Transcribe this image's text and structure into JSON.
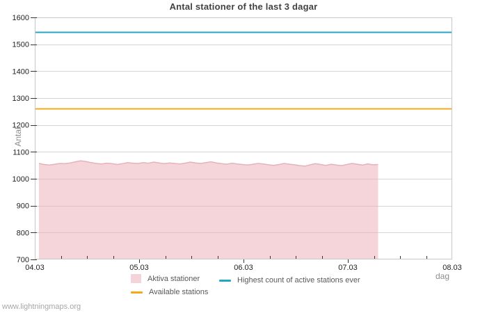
{
  "page": {
    "watermark": "www.lightningmaps.org"
  },
  "chart_data": {
    "type": "area",
    "title": "Antal stationer of the last 3 dagar",
    "xlabel": "dag",
    "ylabel": "Antal",
    "ylim": [
      700,
      1600
    ],
    "yticks": [
      700,
      800,
      900,
      1000,
      1100,
      1200,
      1300,
      1400,
      1500,
      1600
    ],
    "xticks": [
      "04.03",
      "05.03",
      "06.03",
      "07.03",
      "08.03"
    ],
    "xtick_days": [
      0,
      1,
      2,
      3,
      4
    ],
    "x_days_range": [
      0,
      4
    ],
    "grid": "horizontal",
    "legend_position": "bottom",
    "series": [
      {
        "name": "Aktiva stationer",
        "type": "area",
        "fill_color": "#ecacb6",
        "fill_opacity": 0.5,
        "edge_color": "#e5b2bb",
        "x_days_start": 0.04,
        "x_days_step": 0.05,
        "values": [
          1057,
          1053,
          1051,
          1054,
          1057,
          1056,
          1059,
          1063,
          1067,
          1064,
          1060,
          1057,
          1055,
          1058,
          1056,
          1053,
          1056,
          1060,
          1058,
          1057,
          1060,
          1058,
          1062,
          1059,
          1056,
          1059,
          1057,
          1055,
          1058,
          1062,
          1059,
          1057,
          1060,
          1063,
          1059,
          1056,
          1054,
          1058,
          1055,
          1053,
          1051,
          1054,
          1057,
          1055,
          1052,
          1050,
          1053,
          1057,
          1054,
          1052,
          1049,
          1047,
          1052,
          1056,
          1053,
          1050,
          1054,
          1051,
          1049,
          1053,
          1057,
          1054,
          1051,
          1055,
          1052,
          1053
        ]
      },
      {
        "name": "Available stations",
        "type": "line",
        "color": "#f3a81e",
        "x_days": [
          0,
          4
        ],
        "values": [
          1261,
          1261
        ]
      },
      {
        "name": "Highest count of active stations ever",
        "type": "line",
        "color": "#24a5c6",
        "x_days": [
          0,
          4
        ],
        "values": [
          1545,
          1545
        ]
      }
    ],
    "colors": {
      "grid": "#d5d5d5",
      "border": "#c9c9c9",
      "tick": "#333333",
      "tick_label": "#222222",
      "legend_swatch_area": "#f4d4d8"
    }
  }
}
